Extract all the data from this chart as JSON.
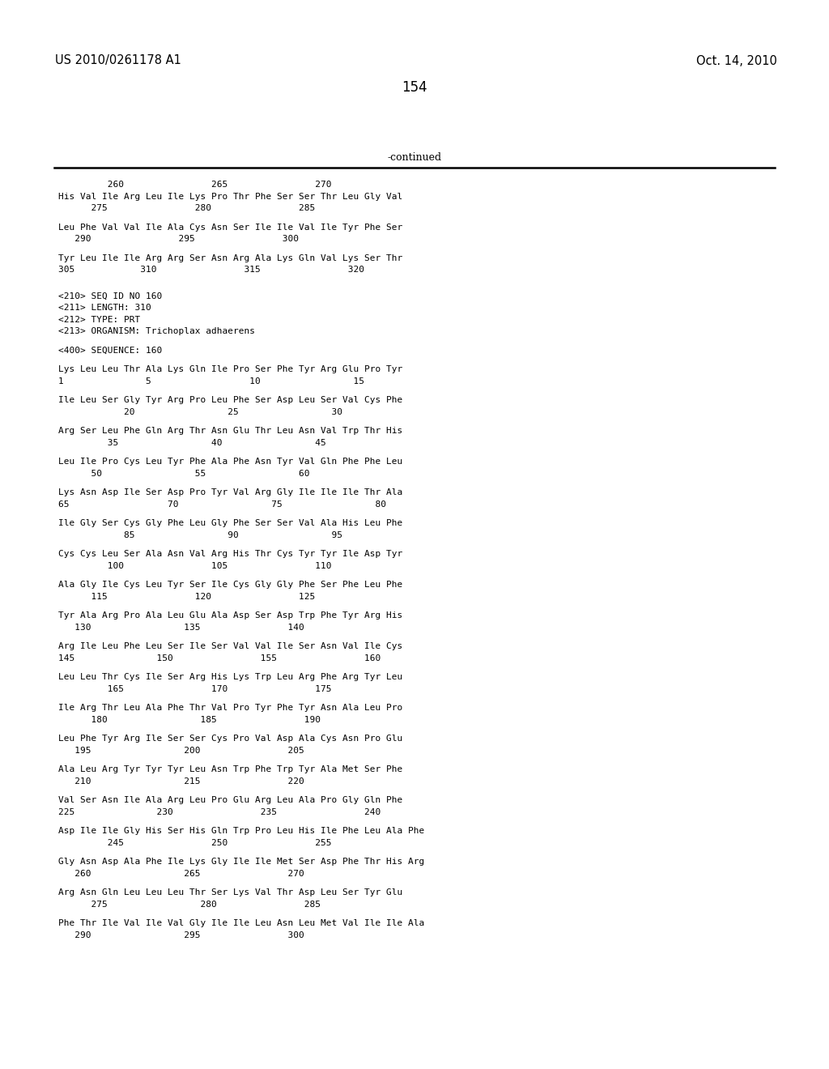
{
  "header_left": "US 2010/0261178 A1",
  "header_right": "Oct. 14, 2010",
  "page_number": "154",
  "continued_label": "-continued",
  "background_color": "#ffffff",
  "text_color": "#000000",
  "content": [
    {
      "type": "numbers",
      "text": "         260                265                270"
    },
    {
      "type": "sequence",
      "text": "His Val Ile Arg Leu Ile Lys Pro Thr Phe Ser Ser Thr Leu Gly Val"
    },
    {
      "type": "numbers",
      "text": "      275                280                285"
    },
    {
      "type": "blank"
    },
    {
      "type": "sequence",
      "text": "Leu Phe Val Val Ile Ala Cys Asn Ser Ile Ile Val Ile Tyr Phe Ser"
    },
    {
      "type": "numbers",
      "text": "   290                295                300"
    },
    {
      "type": "blank"
    },
    {
      "type": "sequence",
      "text": "Tyr Leu Ile Ile Arg Arg Ser Asn Arg Ala Lys Gln Val Lys Ser Thr"
    },
    {
      "type": "numbers",
      "text": "305            310                315                320"
    },
    {
      "type": "blank"
    },
    {
      "type": "blank"
    },
    {
      "type": "meta",
      "text": "<210> SEQ ID NO 160"
    },
    {
      "type": "meta",
      "text": "<211> LENGTH: 310"
    },
    {
      "type": "meta",
      "text": "<212> TYPE: PRT"
    },
    {
      "type": "meta",
      "text": "<213> ORGANISM: Trichoplax adhaerens"
    },
    {
      "type": "blank"
    },
    {
      "type": "meta",
      "text": "<400> SEQUENCE: 160"
    },
    {
      "type": "blank"
    },
    {
      "type": "sequence",
      "text": "Lys Leu Leu Thr Ala Lys Gln Ile Pro Ser Phe Tyr Arg Glu Pro Tyr"
    },
    {
      "type": "numbers",
      "text": "1               5                  10                 15"
    },
    {
      "type": "blank"
    },
    {
      "type": "sequence",
      "text": "Ile Leu Ser Gly Tyr Arg Pro Leu Phe Ser Asp Leu Ser Val Cys Phe"
    },
    {
      "type": "numbers",
      "text": "            20                 25                 30"
    },
    {
      "type": "blank"
    },
    {
      "type": "sequence",
      "text": "Arg Ser Leu Phe Gln Arg Thr Asn Glu Thr Leu Asn Val Trp Thr His"
    },
    {
      "type": "numbers",
      "text": "         35                 40                 45"
    },
    {
      "type": "blank"
    },
    {
      "type": "sequence",
      "text": "Leu Ile Pro Cys Leu Tyr Phe Ala Phe Asn Tyr Val Gln Phe Phe Leu"
    },
    {
      "type": "numbers",
      "text": "      50                 55                 60"
    },
    {
      "type": "blank"
    },
    {
      "type": "sequence",
      "text": "Lys Asn Asp Ile Ser Asp Pro Tyr Val Arg Gly Ile Ile Ile Thr Ala"
    },
    {
      "type": "numbers",
      "text": "65                  70                 75                 80"
    },
    {
      "type": "blank"
    },
    {
      "type": "sequence",
      "text": "Ile Gly Ser Cys Gly Phe Leu Gly Phe Ser Ser Val Ala His Leu Phe"
    },
    {
      "type": "numbers",
      "text": "            85                 90                 95"
    },
    {
      "type": "blank"
    },
    {
      "type": "sequence",
      "text": "Cys Cys Leu Ser Ala Asn Val Arg His Thr Cys Tyr Tyr Ile Asp Tyr"
    },
    {
      "type": "numbers",
      "text": "         100                105                110"
    },
    {
      "type": "blank"
    },
    {
      "type": "sequence",
      "text": "Ala Gly Ile Cys Leu Tyr Ser Ile Cys Gly Gly Phe Ser Phe Leu Phe"
    },
    {
      "type": "numbers",
      "text": "      115                120                125"
    },
    {
      "type": "blank"
    },
    {
      "type": "sequence",
      "text": "Tyr Ala Arg Pro Ala Leu Glu Ala Asp Ser Asp Trp Phe Tyr Arg His"
    },
    {
      "type": "numbers",
      "text": "   130                 135                140"
    },
    {
      "type": "blank"
    },
    {
      "type": "sequence",
      "text": "Arg Ile Leu Phe Leu Ser Ile Ser Val Val Ile Ser Asn Val Ile Cys"
    },
    {
      "type": "numbers",
      "text": "145               150                155                160"
    },
    {
      "type": "blank"
    },
    {
      "type": "sequence",
      "text": "Leu Leu Thr Cys Ile Ser Arg His Lys Trp Leu Arg Phe Arg Tyr Leu"
    },
    {
      "type": "numbers",
      "text": "         165                170                175"
    },
    {
      "type": "blank"
    },
    {
      "type": "sequence",
      "text": "Ile Arg Thr Leu Ala Phe Thr Val Pro Tyr Phe Tyr Asn Ala Leu Pro"
    },
    {
      "type": "numbers",
      "text": "      180                 185                190"
    },
    {
      "type": "blank"
    },
    {
      "type": "sequence",
      "text": "Leu Phe Tyr Arg Ile Ser Ser Cys Pro Val Asp Ala Cys Asn Pro Glu"
    },
    {
      "type": "numbers",
      "text": "   195                 200                205"
    },
    {
      "type": "blank"
    },
    {
      "type": "sequence",
      "text": "Ala Leu Arg Tyr Tyr Tyr Leu Asn Trp Phe Trp Tyr Ala Met Ser Phe"
    },
    {
      "type": "numbers",
      "text": "   210                 215                220"
    },
    {
      "type": "blank"
    },
    {
      "type": "sequence",
      "text": "Val Ser Asn Ile Ala Arg Leu Pro Glu Arg Leu Ala Pro Gly Gln Phe"
    },
    {
      "type": "numbers",
      "text": "225               230                235                240"
    },
    {
      "type": "blank"
    },
    {
      "type": "sequence",
      "text": "Asp Ile Ile Gly His Ser His Gln Trp Pro Leu His Ile Phe Leu Ala Phe"
    },
    {
      "type": "numbers",
      "text": "         245                250                255"
    },
    {
      "type": "blank"
    },
    {
      "type": "sequence",
      "text": "Gly Asn Asp Ala Phe Ile Lys Gly Ile Ile Met Ser Asp Phe Thr His Arg"
    },
    {
      "type": "numbers",
      "text": "   260                 265                270"
    },
    {
      "type": "blank"
    },
    {
      "type": "sequence",
      "text": "Arg Asn Gln Leu Leu Leu Thr Ser Lys Val Thr Asp Leu Ser Tyr Glu"
    },
    {
      "type": "numbers",
      "text": "      275                 280                285"
    },
    {
      "type": "blank"
    },
    {
      "type": "sequence",
      "text": "Phe Thr Ile Val Ile Val Gly Ile Ile Leu Asn Leu Met Val Ile Ile Ala"
    },
    {
      "type": "numbers",
      "text": "   290                 295                300"
    }
  ]
}
